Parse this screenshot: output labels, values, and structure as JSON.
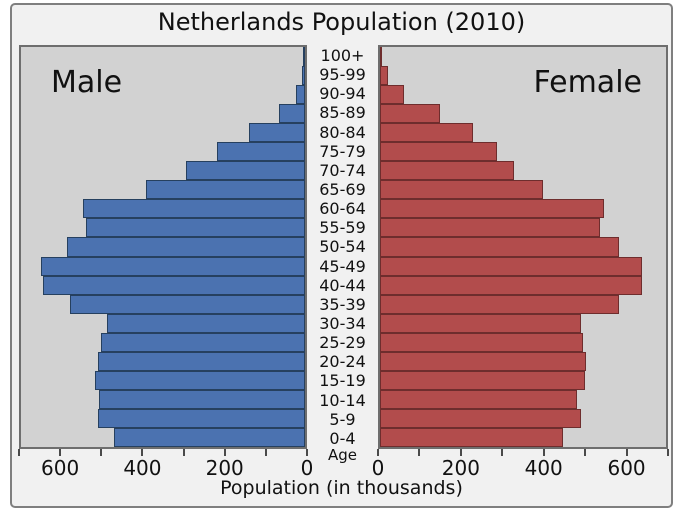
{
  "chart_data": {
    "type": "bar",
    "subtype": "population-pyramid",
    "title": "Netherlands Population (2010)",
    "xlabel": "Population (in thousands)",
    "ylabel": "Age",
    "xlim_each_side": [
      0,
      700
    ],
    "x_major_ticks": [
      0,
      200,
      400,
      600
    ],
    "x_minor_tick_step": 100,
    "grid": false,
    "categories": [
      "100+",
      "95-99",
      "90-94",
      "85-89",
      "80-84",
      "75-79",
      "70-74",
      "65-69",
      "60-64",
      "55-59",
      "50-54",
      "45-49",
      "40-44",
      "35-39",
      "30-34",
      "25-29",
      "20-24",
      "15-19",
      "10-14",
      "5-9",
      "0-4"
    ],
    "series": [
      {
        "name": "Male",
        "side": "left",
        "color": "#4b72b0",
        "values": [
          2,
          8,
          22,
          65,
          137,
          218,
          293,
          391,
          548,
          540,
          587,
          650,
          647,
          580,
          488,
          504,
          511,
          517,
          508,
          511,
          470
        ]
      },
      {
        "name": "Female",
        "side": "right",
        "color": "#b24c4c",
        "values": [
          2,
          20,
          58,
          146,
          227,
          286,
          329,
          399,
          548,
          538,
          586,
          641,
          641,
          584,
          493,
          497,
          504,
          501,
          481,
          493,
          447
        ]
      }
    ]
  },
  "colors": {
    "male_fill": "#4b72b0",
    "male_edge": "#26405f",
    "female_fill": "#b24c4c",
    "female_edge": "#6e2d2d",
    "plot_background": "#d2d2d2",
    "figure_background": "#f1f1f1",
    "spine": "#6e6e6e",
    "text": "#111111"
  }
}
